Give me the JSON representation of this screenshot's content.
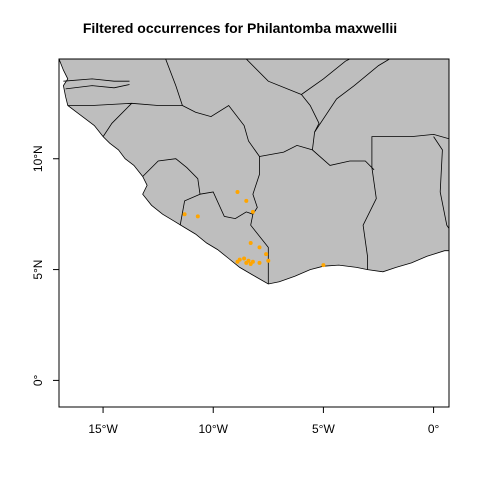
{
  "title": "Filtered occurrences for Philantomba maxwellii",
  "colors": {
    "land": "#bebebe",
    "border": "#000000",
    "sea": "#ffffff",
    "occurrence": "#ffa500"
  },
  "map": {
    "lon_range": [
      -17,
      0.7
    ],
    "lat_range": [
      -1.2,
      14.5
    ],
    "x_ticks": [
      {
        "value": -15,
        "label": "15°W"
      },
      {
        "value": -10,
        "label": "10°W"
      },
      {
        "value": -5,
        "label": "5°W"
      },
      {
        "value": 0,
        "label": "0°"
      }
    ],
    "y_ticks": [
      {
        "value": 10,
        "label": "10°N"
      },
      {
        "value": 5,
        "label": "5°N"
      },
      {
        "value": 0,
        "label": "0°"
      }
    ]
  },
  "occurrences": [
    {
      "lon": -8.9,
      "lat": 8.5
    },
    {
      "lon": -8.5,
      "lat": 8.1
    },
    {
      "lon": -8.2,
      "lat": 7.6
    },
    {
      "lon": -11.3,
      "lat": 7.5
    },
    {
      "lon": -10.7,
      "lat": 7.4
    },
    {
      "lon": -8.3,
      "lat": 6.2
    },
    {
      "lon": -7.9,
      "lat": 6.0
    },
    {
      "lon": -7.6,
      "lat": 5.7
    },
    {
      "lon": -8.6,
      "lat": 5.5
    },
    {
      "lon": -8.8,
      "lat": 5.45
    },
    {
      "lon": -8.4,
      "lat": 5.4
    },
    {
      "lon": -8.2,
      "lat": 5.35
    },
    {
      "lon": -8.9,
      "lat": 5.35
    },
    {
      "lon": -8.5,
      "lat": 5.3
    },
    {
      "lon": -8.3,
      "lat": 5.25
    },
    {
      "lon": -7.9,
      "lat": 5.3
    },
    {
      "lon": -7.5,
      "lat": 5.4
    },
    {
      "lon": -5.0,
      "lat": 5.2
    }
  ]
}
